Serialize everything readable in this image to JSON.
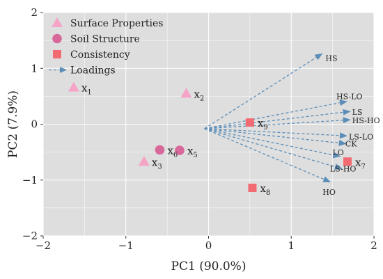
{
  "chart_data": {
    "type": "scatter",
    "xlabel": "PC1 (90.0%)",
    "ylabel": "PC2 (7.9%)",
    "xlim": [
      -2,
      2
    ],
    "ylim": [
      -2,
      2
    ],
    "xticks": [
      -2,
      -1,
      0,
      1,
      2
    ],
    "yticks": [
      -2,
      -1,
      0,
      1,
      2
    ],
    "xtick_labels": [
      "−2",
      "−1",
      "0",
      "1",
      "2"
    ],
    "ytick_labels": [
      "−2",
      "−1",
      "0",
      "1",
      "2"
    ],
    "grid": true,
    "legend_position": "top-left",
    "legend": [
      {
        "label": "Surface Properties",
        "marker": "triangle",
        "color": "#f5a3c7"
      },
      {
        "label": "Soil Structure",
        "marker": "circle",
        "color": "#d9689a"
      },
      {
        "label": "Consistency",
        "marker": "square",
        "color": "#f26b73"
      },
      {
        "label": "Loadings",
        "marker": "arrow",
        "color": "#5b8db8"
      }
    ],
    "points": [
      {
        "label": "x",
        "sub": "1",
        "group": "Surface Properties",
        "x": -1.63,
        "y": 0.66
      },
      {
        "label": "x",
        "sub": "2",
        "group": "Surface Properties",
        "x": -0.27,
        "y": 0.55
      },
      {
        "label": "x",
        "sub": "3",
        "group": "Surface Properties",
        "x": -0.78,
        "y": -0.67
      },
      {
        "label": "x",
        "sub": "5",
        "group": "Soil Structure",
        "x": -0.35,
        "y": -0.47
      },
      {
        "label": "x",
        "sub": "6",
        "group": "Soil Structure",
        "x": -0.59,
        "y": -0.46
      },
      {
        "label": "x",
        "sub": "7",
        "group": "Consistency",
        "x": 1.68,
        "y": -0.67
      },
      {
        "label": "x",
        "sub": "8",
        "group": "Consistency",
        "x": 0.53,
        "y": -1.14
      },
      {
        "label": "x",
        "sub": "9",
        "group": "Consistency",
        "x": 0.5,
        "y": 0.03
      }
    ],
    "loadings": [
      {
        "label": "HS",
        "x": 1.38,
        "y": 1.27
      },
      {
        "label": "HS-LO",
        "x": 1.68,
        "y": 0.41
      },
      {
        "label": "LS",
        "x": 1.72,
        "y": 0.23
      },
      {
        "label": "HS-HO",
        "x": 1.72,
        "y": 0.08
      },
      {
        "label": "LS-LO",
        "x": 1.68,
        "y": -0.21
      },
      {
        "label": "CK",
        "x": 1.67,
        "y": -0.35
      },
      {
        "label": "LO",
        "x": 1.6,
        "y": -0.58
      },
      {
        "label": "LS-HO",
        "x": 1.62,
        "y": -0.8
      },
      {
        "label": "HO",
        "x": 1.48,
        "y": -1.04
      }
    ],
    "loading_origin": {
      "x": -0.05,
      "y": -0.08
    }
  }
}
